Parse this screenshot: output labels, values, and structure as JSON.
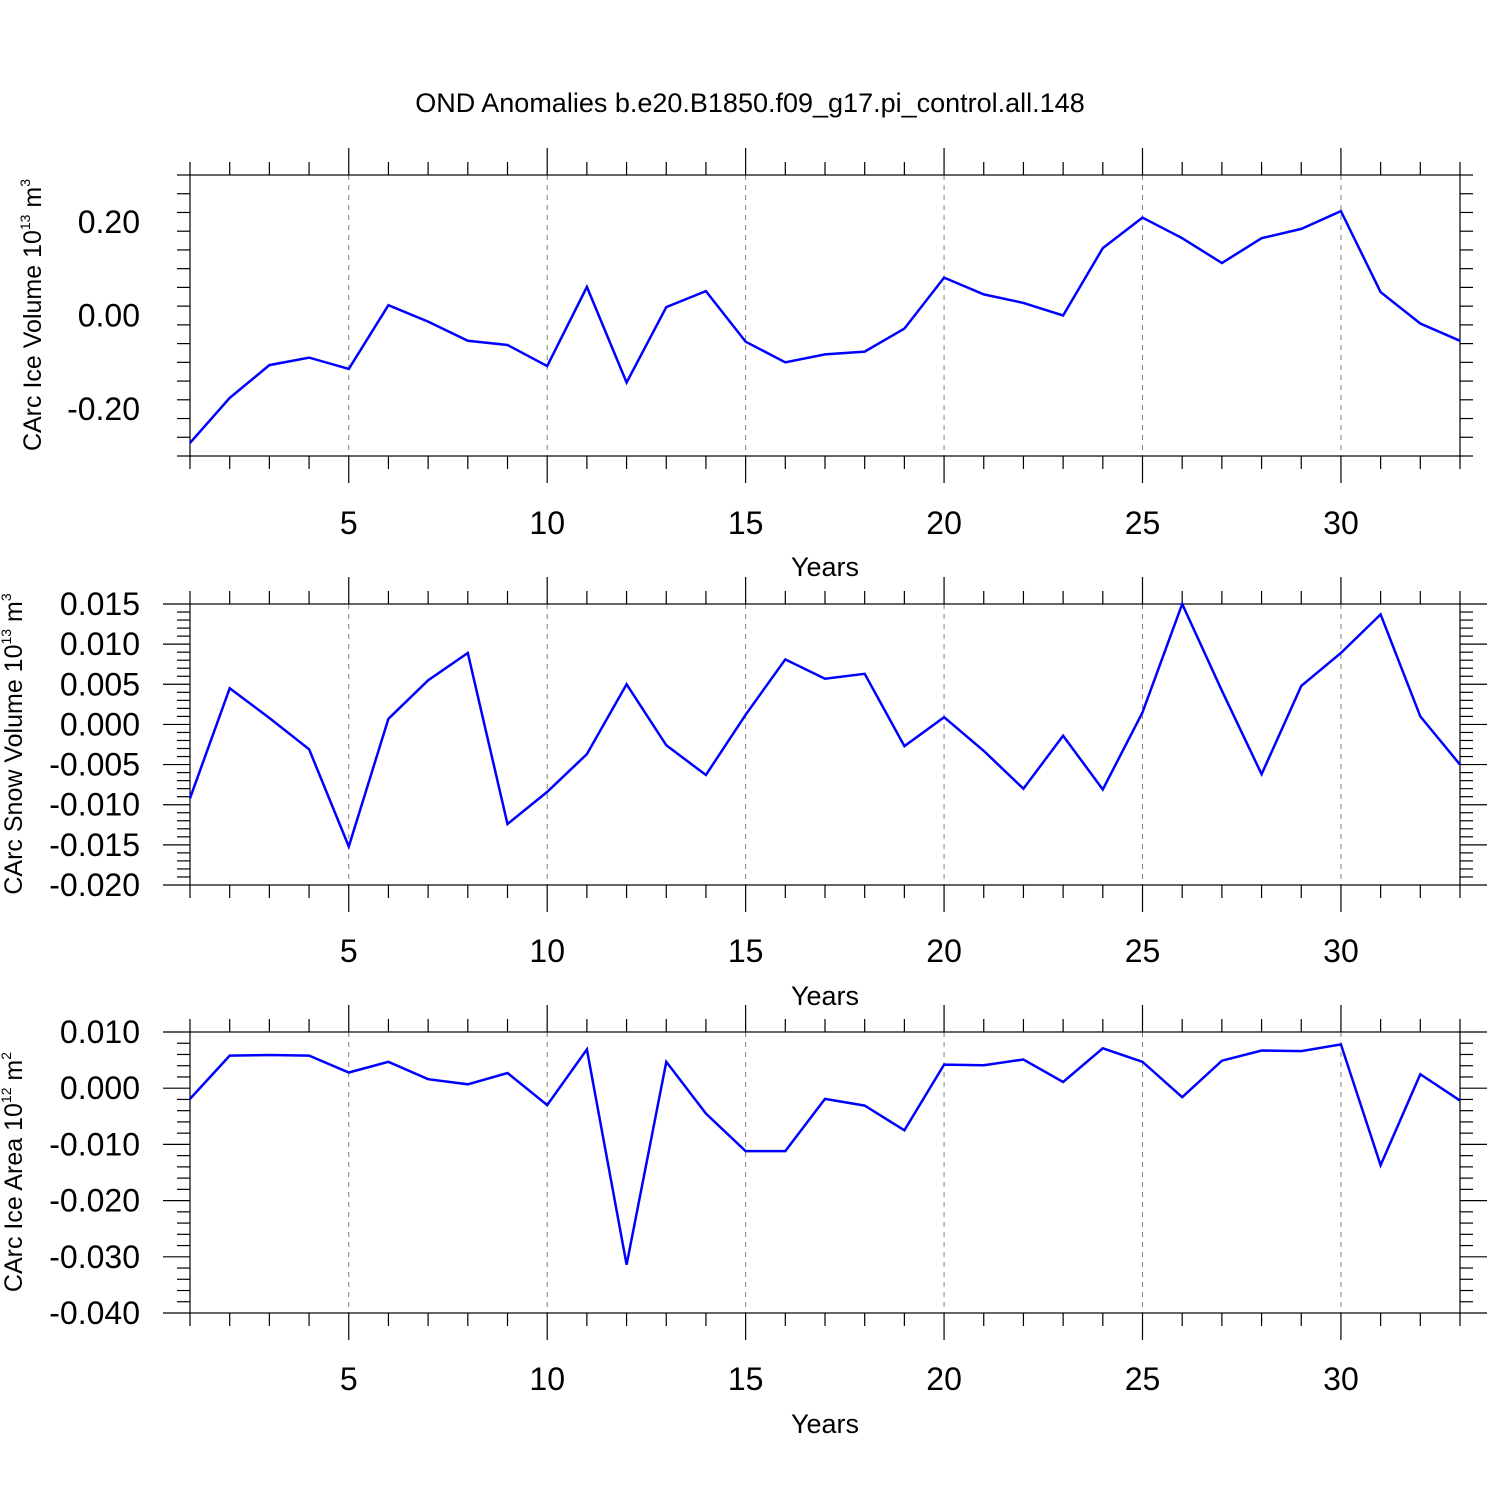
{
  "figure": {
    "title": "OND Anomalies b.e20.B1850.f09_g17.pi_control.all.148",
    "line_color": "#0000ff",
    "grid_color": "#808080"
  },
  "chart_data": [
    {
      "type": "line",
      "title": "OND Anomalies b.e20.B1850.f09_g17.pi_control.all.148",
      "xlabel": "Years",
      "ylabel": {
        "text": "CArc Ice Volume 10",
        "exp": "13",
        "unit": "m",
        "unit_exp": "3"
      },
      "xlim": [
        1,
        33
      ],
      "ylim": [
        -0.3,
        0.3
      ],
      "xticks": [
        5,
        10,
        15,
        20,
        25,
        30
      ],
      "xtick_labels": [
        "5",
        "10",
        "15",
        "20",
        "25",
        "30"
      ],
      "yticks": [
        -0.2,
        0.0,
        0.2
      ],
      "ytick_labels": [
        "-0.20",
        "0.00",
        "0.20"
      ],
      "grid": "vertical dashed",
      "series": [
        {
          "x": [
            1,
            2,
            3,
            4,
            5,
            6,
            7,
            8,
            9,
            10,
            11,
            12,
            13,
            14,
            15,
            16,
            17,
            18,
            19,
            20,
            21,
            22,
            23,
            24,
            25,
            26,
            27,
            28,
            29,
            30,
            31,
            32,
            33
          ],
          "values": [
            -0.272,
            -0.176,
            -0.106,
            -0.09,
            -0.114,
            0.022,
            -0.013,
            -0.054,
            -0.063,
            -0.108,
            0.061,
            -0.143,
            0.018,
            0.052,
            -0.056,
            -0.1,
            -0.083,
            -0.077,
            -0.028,
            0.081,
            0.045,
            0.027,
            0.0,
            0.144,
            0.209,
            0.165,
            0.112,
            0.165,
            0.185,
            0.223,
            0.05,
            -0.017,
            -0.054
          ]
        }
      ]
    },
    {
      "type": "line",
      "xlabel": "Years",
      "ylabel": {
        "text": "CArc Snow Volume 10",
        "exp": "13",
        "unit": "m",
        "unit_exp": "3"
      },
      "xlim": [
        1,
        33
      ],
      "ylim": [
        -0.02,
        0.015
      ],
      "xticks": [
        5,
        10,
        15,
        20,
        25,
        30
      ],
      "xtick_labels": [
        "5",
        "10",
        "15",
        "20",
        "25",
        "30"
      ],
      "yticks": [
        -0.02,
        -0.015,
        -0.01,
        -0.005,
        0.0,
        0.005,
        0.01,
        0.015
      ],
      "ytick_labels": [
        "-0.020",
        "-0.015",
        "-0.010",
        "-0.005",
        "0.000",
        "0.005",
        "0.010",
        "0.015"
      ],
      "grid": "vertical dashed",
      "series": [
        {
          "x": [
            1,
            2,
            3,
            4,
            5,
            6,
            7,
            8,
            9,
            10,
            11,
            12,
            13,
            14,
            15,
            16,
            17,
            18,
            19,
            20,
            21,
            22,
            23,
            24,
            25,
            26,
            27,
            28,
            29,
            30,
            31,
            32,
            33
          ],
          "values": [
            -0.0092,
            0.0045,
            0.0008,
            -0.0031,
            -0.0152,
            0.0007,
            0.0055,
            0.0089,
            -0.0124,
            -0.0084,
            -0.0037,
            0.005,
            -0.0026,
            -0.0063,
            0.0012,
            0.0081,
            0.0057,
            0.0063,
            -0.0027,
            0.0009,
            -0.0033,
            -0.008,
            -0.0014,
            -0.0081,
            0.0015,
            0.015,
            0.0042,
            -0.0062,
            0.0048,
            0.0089,
            0.0137,
            0.001,
            -0.005
          ]
        }
      ]
    },
    {
      "type": "line",
      "xlabel": "Years",
      "ylabel": {
        "text": "CArc Ice Area 10",
        "exp": "12",
        "unit": "m",
        "unit_exp": "2"
      },
      "xlim": [
        1,
        33
      ],
      "ylim": [
        -0.04,
        0.01
      ],
      "xticks": [
        5,
        10,
        15,
        20,
        25,
        30
      ],
      "xtick_labels": [
        "5",
        "10",
        "15",
        "20",
        "25",
        "30"
      ],
      "yticks": [
        -0.04,
        -0.03,
        -0.02,
        -0.01,
        0.0,
        0.01
      ],
      "ytick_labels": [
        "-0.040",
        "-0.030",
        "-0.020",
        "-0.010",
        "0.000",
        "0.010"
      ],
      "grid": "vertical dashed",
      "series": [
        {
          "x": [
            1,
            2,
            3,
            4,
            5,
            6,
            7,
            8,
            9,
            10,
            11,
            12,
            13,
            14,
            15,
            16,
            17,
            18,
            19,
            20,
            21,
            22,
            23,
            24,
            25,
            26,
            27,
            28,
            29,
            30,
            31,
            32,
            33
          ],
          "values": [
            -0.0019,
            0.0058,
            0.0059,
            0.0058,
            0.0028,
            0.0047,
            0.0016,
            0.0007,
            0.0027,
            -0.003,
            0.0069,
            -0.0314,
            0.0047,
            -0.0045,
            -0.0112,
            -0.0112,
            -0.0019,
            -0.0031,
            -0.0075,
            0.0042,
            0.0041,
            0.0051,
            0.0011,
            0.0071,
            0.0047,
            -0.0016,
            0.0049,
            0.0067,
            0.0066,
            0.0078,
            -0.0137,
            0.0025,
            -0.0022
          ]
        }
      ]
    }
  ]
}
